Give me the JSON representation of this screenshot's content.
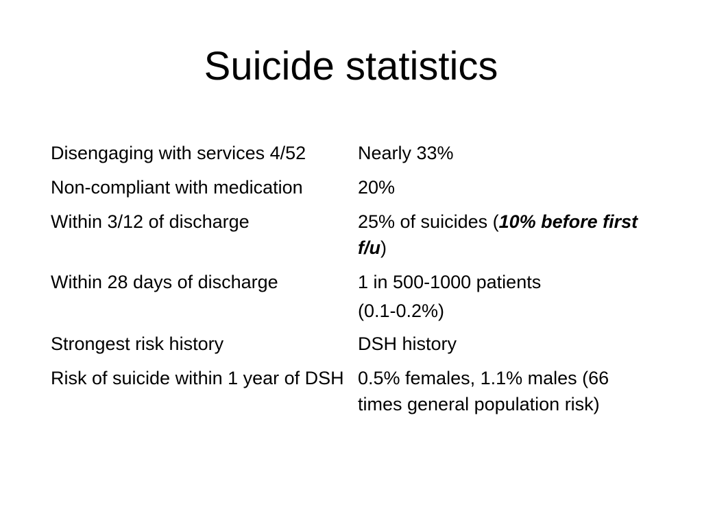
{
  "slide": {
    "title": "Suicide statistics"
  },
  "rows": [
    {
      "label": "Disengaging with services 4/52",
      "value": "Nearly 33%"
    },
    {
      "label": "Non-compliant with medication",
      "value": "20%"
    },
    {
      "label": "Within 3/12 of discharge",
      "value_prefix": "25% of suicides (",
      "value_emphasis": "10% before first f/u",
      "value_suffix": ")"
    },
    {
      "label": "Within 28 days of discharge",
      "value_line1": "1 in 500-1000 patients",
      "value_line2": "(0.1-0.2%)"
    },
    {
      "label": "Strongest risk history",
      "value": "DSH history"
    },
    {
      "label": "Risk of suicide within 1 year of DSH",
      "value": "0.5% females, 1.1% males (66 times general population risk)"
    }
  ]
}
